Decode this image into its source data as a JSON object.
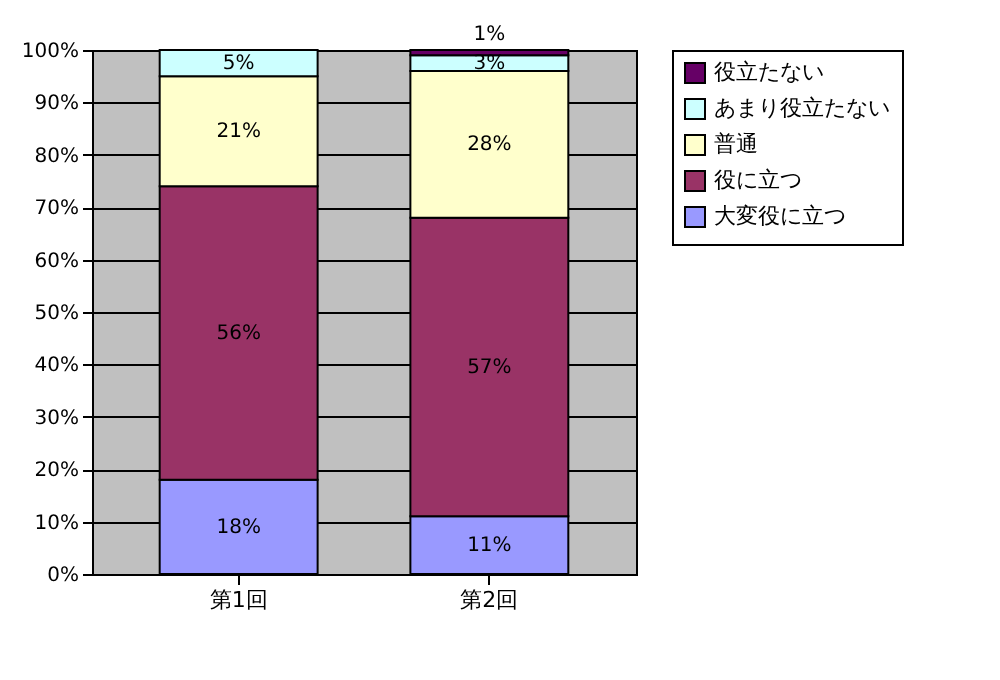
{
  "chart_data": {
    "type": "bar",
    "stacked": true,
    "categories": [
      "第1回",
      "第2回"
    ],
    "series": [
      {
        "name": "大変役に立つ",
        "color": "#9999ff",
        "values": [
          18,
          11
        ],
        "value_labels": [
          "18%",
          "11%"
        ]
      },
      {
        "name": "役に立つ",
        "color": "#993366",
        "values": [
          56,
          57
        ],
        "value_labels": [
          "56%",
          "57%"
        ]
      },
      {
        "name": "普通",
        "color": "#ffffcc",
        "values": [
          21,
          28
        ],
        "value_labels": [
          "21%",
          "28%"
        ]
      },
      {
        "name": "あまり役立たない",
        "color": "#ccffff",
        "values": [
          5,
          3
        ],
        "value_labels": [
          "5%",
          "3%"
        ]
      },
      {
        "name": "役立たない",
        "color": "#660066",
        "values": [
          null,
          1
        ],
        "value_labels": [
          null,
          "1%"
        ]
      }
    ],
    "ylim": [
      0,
      100
    ],
    "yticks": [
      {
        "value": 0,
        "label": "0%"
      },
      {
        "value": 10,
        "label": "10%"
      },
      {
        "value": 20,
        "label": "20%"
      },
      {
        "value": 30,
        "label": "30%"
      },
      {
        "value": 40,
        "label": "40%"
      },
      {
        "value": 50,
        "label": "50%"
      },
      {
        "value": 60,
        "label": "60%"
      },
      {
        "value": 70,
        "label": "70%"
      },
      {
        "value": 80,
        "label": "80%"
      },
      {
        "value": 90,
        "label": "90%"
      },
      {
        "value": 100,
        "label": "100%"
      }
    ],
    "grid": "y",
    "legend": "right"
  }
}
